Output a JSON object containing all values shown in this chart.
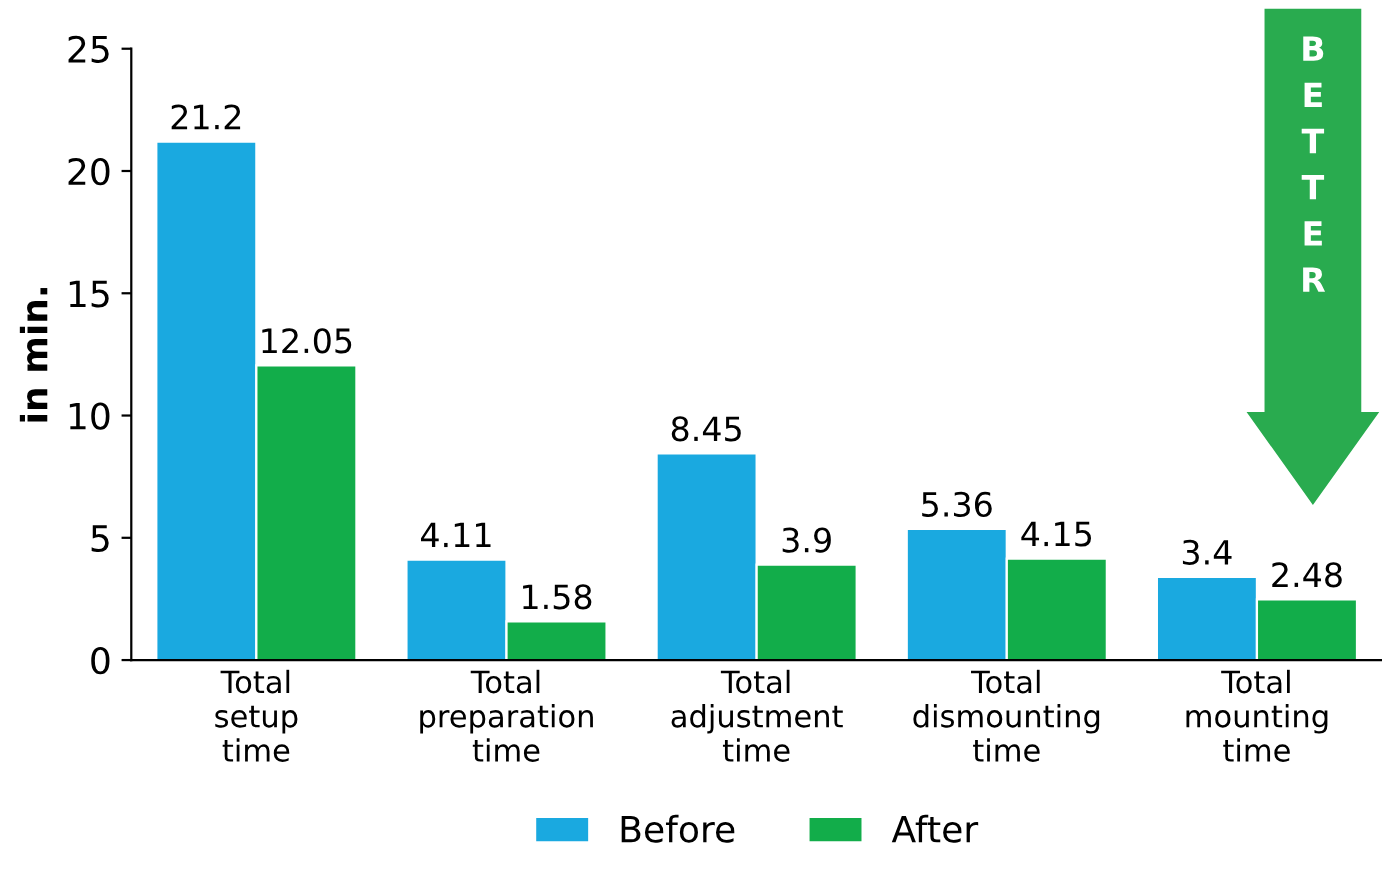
{
  "chart_data": {
    "type": "bar",
    "ylabel": "in min.",
    "categories": [
      "Total\nsetup\ntime",
      "Total\npreparation\ntime",
      "Total\nadjustment\ntime",
      "Total\ndismounting\ntime",
      "Total\nmounting\ntime"
    ],
    "series": [
      {
        "name": "Before",
        "color": "#1aa9e0",
        "values": [
          21.2,
          4.11,
          8.45,
          5.36,
          3.4
        ]
      },
      {
        "name": "After",
        "color": "#12ad4a",
        "values": [
          12.05,
          1.58,
          3.9,
          4.15,
          2.48
        ]
      }
    ],
    "ylim": [
      0,
      25
    ],
    "yticks": [
      0,
      5,
      10,
      15,
      20,
      25
    ],
    "grid": false,
    "legend": "bottom",
    "data_labels": true,
    "annotations": [
      "BETTER"
    ]
  }
}
